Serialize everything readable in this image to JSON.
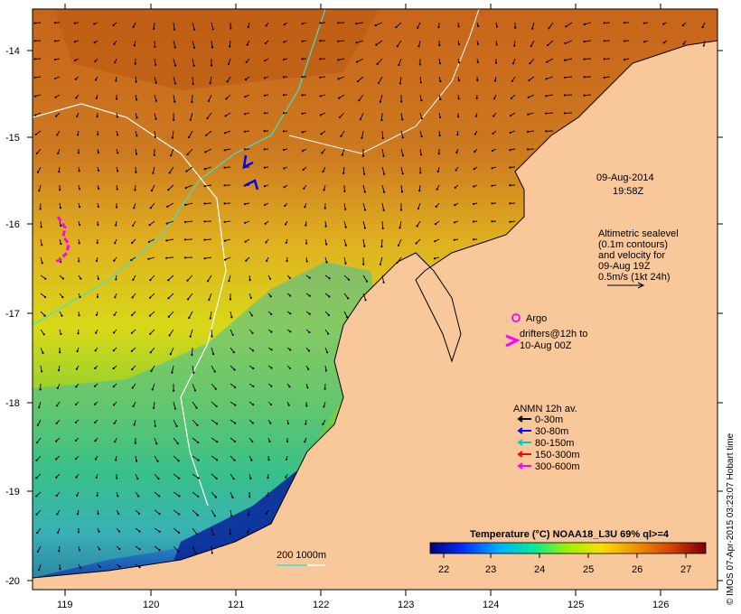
{
  "map": {
    "timestamp_date": "09-Aug-2014",
    "timestamp_time": "19:58Z",
    "lon_ticks": [
      "119",
      "120",
      "121",
      "122",
      "123",
      "124",
      "125",
      "126"
    ],
    "lat_ticks": [
      "-14",
      "-15",
      "-16",
      "-17",
      "-18",
      "-19",
      "-20"
    ],
    "altimetry_lines": [
      "Altimetric sealevel",
      "(0.1m contours)",
      "and velocity for",
      "09-Aug 19Z",
      "0.5m/s (1kt 24h)"
    ],
    "argo_label": "Argo",
    "drifters_lines": [
      "drifters@12h to",
      "10-Aug 00Z"
    ],
    "anmn_title": "ANMN 12h av.",
    "anmn_legend": [
      {
        "label": "0-30m",
        "color": "#000000"
      },
      {
        "label": "30-80m",
        "color": "#0000ff"
      },
      {
        "label": "80-150m",
        "color": "#00cccc"
      },
      {
        "label": "150-300m",
        "color": "#ff0000"
      },
      {
        "label": "300-600m",
        "color": "#ff00ff"
      }
    ],
    "bathy_label": "200  1000m",
    "colorbar_title": "Temperature (°C) NOAA18_L3U 69% ql>=4",
    "colorbar_ticks": [
      "22",
      "23",
      "24",
      "25",
      "26",
      "27"
    ],
    "credit": "© IMOS 07-Apr-2015 03:23:07 Hobart time",
    "colors": {
      "land": "#f8c79a",
      "argo": "#ff00ff",
      "bathy_200": "#40e0d0",
      "bathy_1000": "#ffffff"
    }
  }
}
